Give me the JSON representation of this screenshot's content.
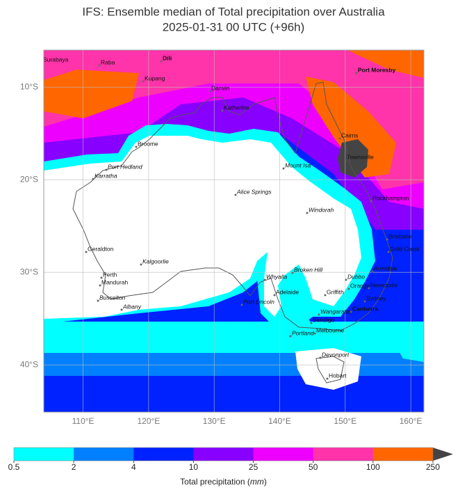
{
  "map": {
    "title": [
      "IFS: Ensemble median of Total precipitation over Australia",
      "2025-01-31 00 UTC (+96h)"
    ],
    "xlim": [
      104,
      162
    ],
    "ylim": [
      -6,
      -45.1
    ],
    "xticks": [
      {
        "value": 110,
        "label": "110°E"
      },
      {
        "value": 120,
        "label": "120°E"
      },
      {
        "value": 130,
        "label": "130°E"
      },
      {
        "value": 140,
        "label": "140°E"
      },
      {
        "value": 150,
        "label": "150°E"
      },
      {
        "value": 160,
        "label": "160°E"
      }
    ],
    "yticks": [
      {
        "value": -10,
        "label": "10°S"
      },
      {
        "value": -20,
        "label": "20°S"
      },
      {
        "value": -30,
        "label": "30°S"
      },
      {
        "value": -40,
        "label": "40°S"
      }
    ],
    "cities": [
      "Surabaya",
      "Raba",
      "Dili",
      "Kupang",
      "Darwin",
      "Katherine",
      "Port Moresby",
      "Cairns",
      "Townsville",
      "Broome",
      "Port Hedland",
      "Karratha",
      "Mount Isa",
      "Alice Springs",
      "Windorah",
      "Rockhampton",
      "Brisbane",
      "Gold Coast",
      "Geraldton",
      "Kalgoorlie",
      "Perth",
      "Mandurah",
      "Busselton",
      "Albany",
      "Whyalla",
      "Port Lincoln",
      "Broken Hill",
      "Adelaide",
      "Griffith",
      "Dubbo",
      "Armidale",
      "Orange",
      "Newcastle",
      "Sydney",
      "Wangaratta",
      "Canberra",
      "Bendigo",
      "Melbourne",
      "Portland",
      "Devonport",
      "Hobart"
    ],
    "colorbar": {
      "ticks": [
        0.5,
        2,
        4,
        10,
        25,
        50,
        100,
        250
      ],
      "colors": [
        "#00ffff",
        "#0080ff",
        "#0022ff",
        "#8800ff",
        "#ee00ff",
        "#ff33aa",
        "#ff6600"
      ],
      "extend_color": "#444444",
      "label": [
        "Total precipitation (",
        "mm",
        ")"
      ]
    }
  }
}
